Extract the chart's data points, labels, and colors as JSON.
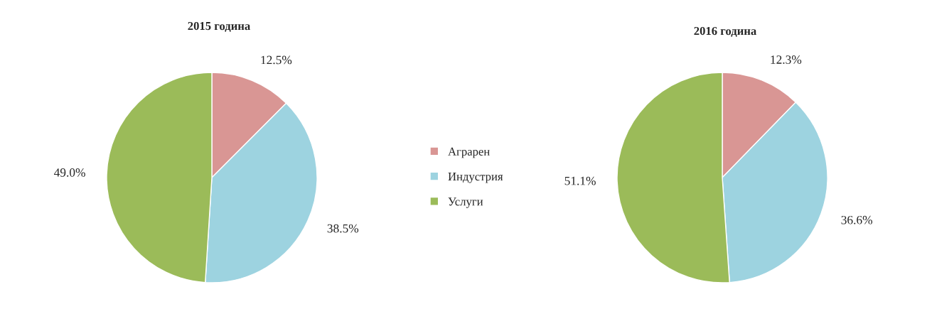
{
  "chart_data": [
    {
      "type": "pie",
      "title": "2015 година",
      "categories": [
        "Аграрен",
        "Индустрия",
        "Услуги"
      ],
      "values": [
        12.5,
        38.5,
        49.0
      ],
      "value_labels": [
        "12.5%",
        "38.5%",
        "49.0%"
      ],
      "colors": [
        "#d99694",
        "#9dd3e0",
        "#9bbb59"
      ],
      "legend": "right"
    },
    {
      "type": "pie",
      "title": "2016 година",
      "categories": [
        null,
        null,
        null
      ],
      "values": [
        12.3,
        36.6,
        51.1
      ],
      "value_labels": [
        "12.3%",
        "36.6%",
        "51.1%"
      ],
      "colors": [
        "#d99694",
        "#9dd3e0",
        "#9bbb59"
      ]
    }
  ]
}
